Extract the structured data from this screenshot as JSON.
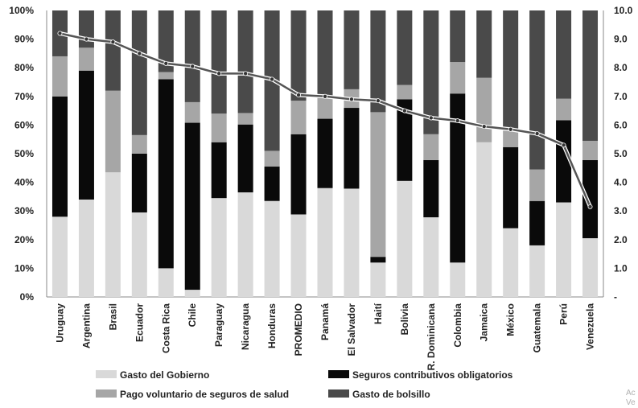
{
  "chart_data": {
    "type": "bar",
    "stacked": true,
    "categories": [
      "Uruguay",
      "Argentina",
      "Brasil",
      "Ecuador",
      "Costa Rica",
      "Chile",
      "Paraguay",
      "Nicaragua",
      "Honduras",
      "PROMEDIO",
      "Panamá",
      "El Salvador",
      "Haití",
      "Bolivia",
      "R. Dominicana",
      "Colombia",
      "Jamaica",
      "México",
      "Guatemala",
      "Perú",
      "Venezuela"
    ],
    "series": [
      {
        "name": "Gasto del Gobierno",
        "color": "#d9d9d9",
        "values": [
          28,
          34,
          43.5,
          29.5,
          10,
          2.5,
          34.5,
          36.5,
          33.5,
          28.8,
          38,
          37.8,
          12,
          40.5,
          27.8,
          12,
          54,
          24,
          18,
          33,
          20.5
        ]
      },
      {
        "name": "Seguros contributivos obligatorios",
        "color": "#0a0a0a",
        "values": [
          42,
          45,
          0,
          20.5,
          66,
          58.3,
          19.5,
          23.7,
          12,
          28,
          24.2,
          28.2,
          2,
          28.5,
          20,
          59,
          0,
          28.3,
          15.5,
          28.7,
          27.3
        ]
      },
      {
        "name": "Pago voluntario de seguros de salud",
        "color": "#a6a6a6",
        "values": [
          14,
          8,
          28.5,
          6.5,
          2.5,
          7.2,
          10,
          4,
          5.5,
          11.7,
          7.8,
          6.5,
          50.5,
          5,
          9,
          11,
          22.5,
          6,
          11,
          7.5,
          6.7
        ]
      },
      {
        "name": "Gasto de bolsillo",
        "color": "#4a4a4a",
        "values": [
          16,
          13,
          28,
          43.5,
          21.5,
          32,
          36,
          35.8,
          49,
          31.5,
          30,
          27.5,
          35.5,
          26,
          43.2,
          18,
          23.5,
          41.7,
          55.5,
          30.8,
          45.5
        ]
      }
    ],
    "line": {
      "values": [
        9.2,
        9.0,
        8.9,
        8.5,
        8.15,
        8.05,
        7.8,
        7.8,
        7.6,
        7.05,
        7.0,
        6.9,
        6.85,
        6.5,
        6.25,
        6.15,
        5.95,
        5.85,
        5.7,
        5.3,
        3.15
      ],
      "color": "#555555"
    },
    "y_left": {
      "min": 0,
      "max": 100,
      "step": 10,
      "ticks": [
        "0%",
        "10%",
        "20%",
        "30%",
        "40%",
        "50%",
        "60%",
        "70%",
        "80%",
        "90%",
        "100%"
      ]
    },
    "y_right": {
      "min": 0,
      "max": 10,
      "step": 1,
      "ticks": [
        "-",
        "1.0",
        "2.0",
        "3.0",
        "4.0",
        "5.0",
        "6.0",
        "7.0",
        "8.0",
        "9.0",
        "10.0"
      ]
    },
    "legend": {
      "placement": "bottom",
      "items": [
        "Gasto del Gobierno",
        "Seguros contributivos obligatorios",
        "Pago voluntario de seguros de salud",
        "Gasto de bolsillo"
      ]
    },
    "title": "",
    "xlabel": "",
    "ylabel": ""
  },
  "watermark": {
    "line1": "Ac",
    "line2": "Ve"
  }
}
